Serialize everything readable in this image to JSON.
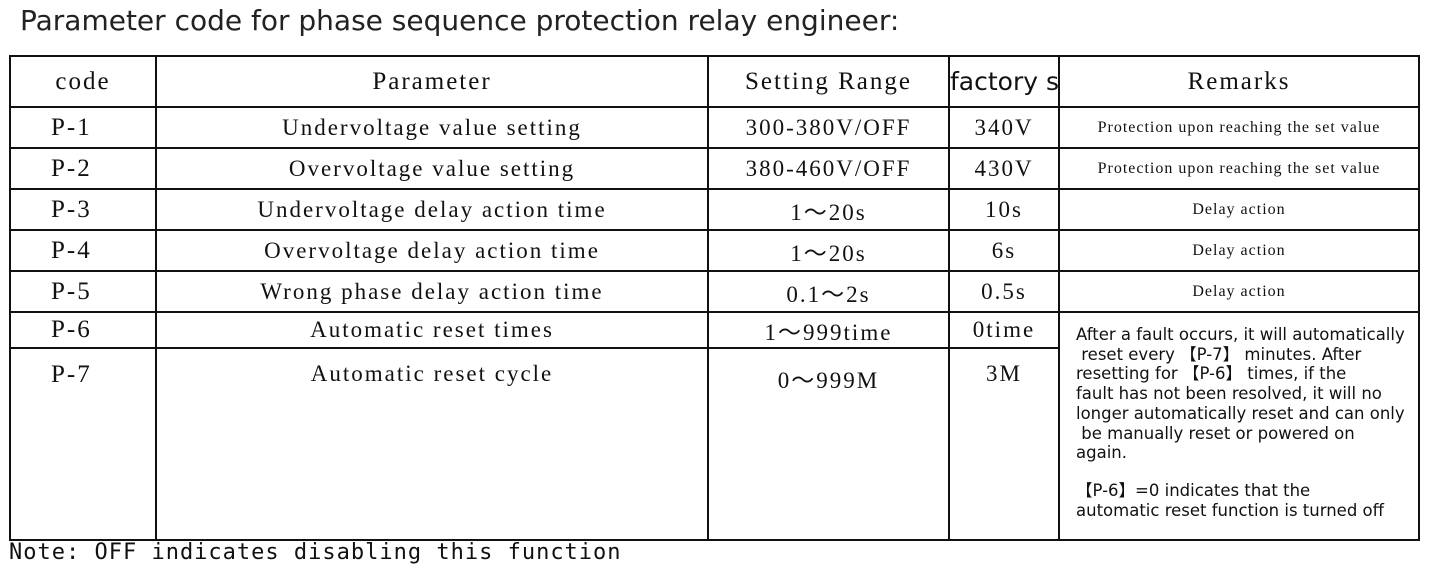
{
  "header": {
    "title": "Parameter code for phase sequence protection relay engineer:"
  },
  "table": {
    "columns": [
      "code",
      "Parameter",
      "Setting Range",
      "factory setting",
      "Remarks"
    ],
    "rows": [
      [
        "P-1",
        "Undervoltage value setting",
        "300-380V/OFF",
        "340V",
        "Protection upon reaching the set value"
      ],
      [
        "P-2",
        "Overvoltage value setting",
        "380-460V/OFF",
        "430V",
        "Protection upon reaching the set value"
      ],
      [
        "P-3",
        "Undervoltage delay action time",
        "1～20s",
        "10s",
        "Delay action"
      ],
      [
        "P-4",
        "Overvoltage delay action time",
        "1～20s",
        "6s",
        "Delay action"
      ],
      [
        "P-5",
        "Wrong phase delay action time",
        "0.1～2s",
        "0.5s",
        "Delay action"
      ],
      [
        "P-6",
        "Automatic reset times",
        "1～999time",
        "0time"
      ],
      [
        "P-7",
        "Automatic reset cycle",
        "0～999M",
        "3M"
      ]
    ],
    "merged_remark": [
      [
        "After a fault occurs, it will automatically",
        " reset every 【P-7】 minutes. After",
        "resetting for 【P-6】 times, if the",
        "fault has not been resolved, it will no",
        "longer automatically reset and can only",
        " be manually reset or powered on",
        "again."
      ],
      [
        "【P-6】=0 indicates that the",
        "automatic reset function is turned off"
      ]
    ]
  },
  "note": "Note: OFF indicates disabling this function"
}
